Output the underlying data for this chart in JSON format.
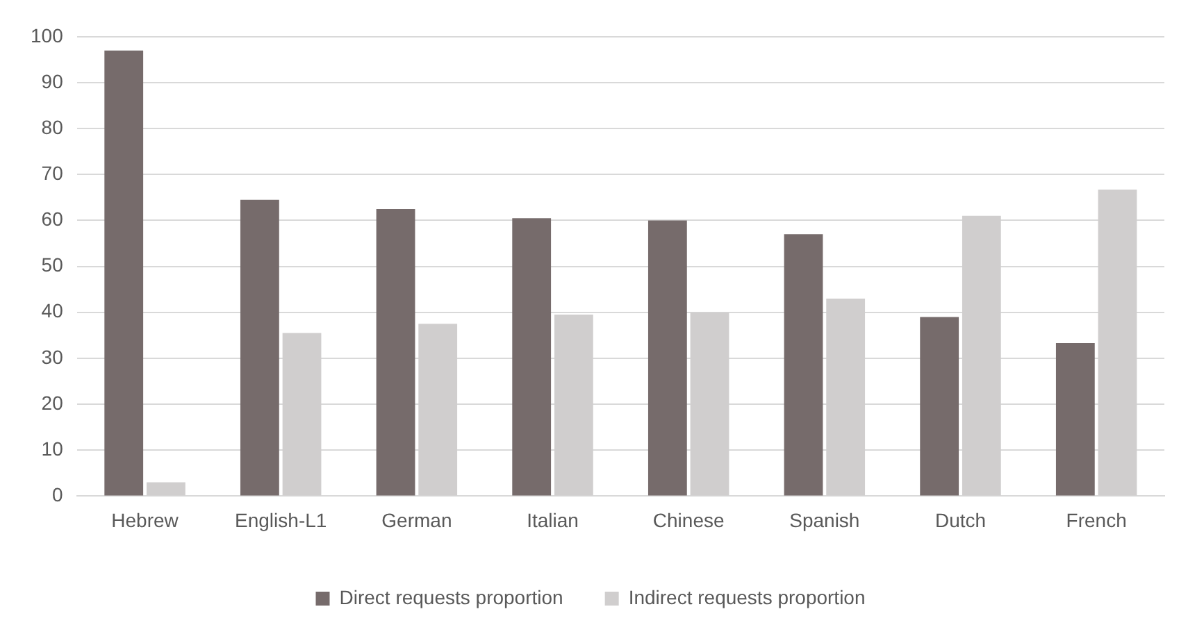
{
  "chart_data": {
    "type": "bar",
    "categories": [
      "Hebrew",
      "English-L1",
      "German",
      "Italian",
      "Chinese",
      "Spanish",
      "Dutch",
      "French"
    ],
    "series": [
      {
        "name": "Direct requests proportion",
        "color": "#766b6b",
        "values": [
          97,
          64.5,
          62.5,
          60.5,
          60,
          57,
          39,
          33.3
        ]
      },
      {
        "name": "Indirect requests proportion",
        "color": "#d0cece",
        "values": [
          3,
          35.5,
          37.5,
          39.5,
          40,
          43,
          61,
          66.7
        ]
      }
    ],
    "ylim": [
      0,
      100
    ],
    "yticks": [
      0,
      10,
      20,
      30,
      40,
      50,
      60,
      70,
      80,
      90,
      100
    ],
    "grid": "y",
    "legend": "bottom"
  }
}
